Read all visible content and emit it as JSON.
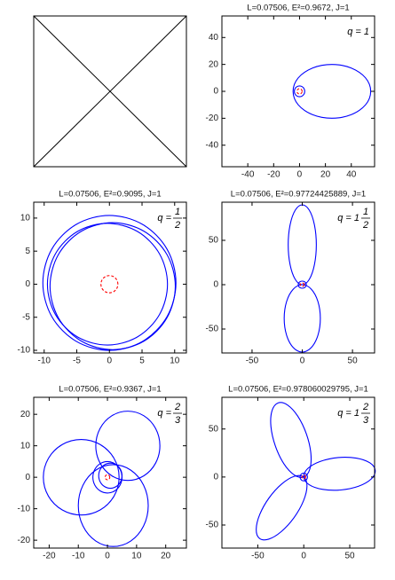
{
  "chart_data": [
    {
      "type": "line",
      "title": "L=0.07506, E²=0.9672, J=1",
      "annotation": {
        "text": "q = 1"
      },
      "xlim": [
        -60,
        58
      ],
      "ylim": [
        -56,
        56
      ],
      "xticks": [
        -40,
        -20,
        0,
        20,
        40
      ],
      "yticks": [
        -40,
        -20,
        0,
        20,
        40
      ],
      "series": [
        {
          "color": "#0000ff",
          "x": [
            55,
            54.0,
            51.0,
            46.2,
            40,
            32.8,
            25,
            17.2,
            10,
            3.8,
            -1,
            -4,
            -5,
            -4,
            -1,
            3.8,
            10,
            17.2,
            25,
            32.8,
            40,
            46.2,
            51.0,
            54.0,
            55
          ],
          "values": [
            0,
            5.2,
            10,
            14.1,
            17.3,
            19.3,
            20,
            19.3,
            17.3,
            14.1,
            10,
            5.2,
            0,
            -5.2,
            -10,
            -14.1,
            -17.3,
            -19.3,
            -20,
            -19.3,
            -17.3,
            -14.1,
            -10,
            -5.2,
            0
          ]
        },
        {
          "color": "#0000ff",
          "x": [
            4,
            3.5,
            2,
            0,
            -2,
            -3.5,
            -4,
            -3.5,
            -2,
            0,
            2,
            3.5,
            4
          ],
          "values": [
            0,
            2,
            3.5,
            4,
            3.5,
            2,
            0,
            -2,
            -3.5,
            -4,
            -3.5,
            -2,
            0
          ]
        },
        {
          "color": "#ff0000",
          "dashed": true,
          "x": [
            2,
            1.7,
            1,
            0,
            -1,
            -1.7,
            -2,
            -1.7,
            -1,
            0,
            1,
            1.7,
            2
          ],
          "values": [
            0,
            1,
            1.7,
            2,
            1.7,
            1,
            0,
            -1,
            -1.7,
            -2,
            -1.7,
            -1,
            0
          ]
        }
      ]
    },
    {
      "type": "line",
      "title": "L=0.07506, E²=0.9095, J=1",
      "annotation": {
        "text": "q =",
        "numerator": "1",
        "denominator": "2"
      },
      "xlim": [
        -11.6,
        11.8
      ],
      "ylim": [
        -10.4,
        12.4
      ],
      "xticks": [
        -10,
        -5,
        0,
        5,
        10
      ],
      "yticks": [
        -10,
        -5,
        0,
        5,
        10
      ],
      "series": [
        {
          "color": "#0000ff",
          "x": [
            10.2,
            8.83,
            5.1,
            0,
            -5.1,
            -8.83,
            -10.2,
            -8.83,
            -5.1,
            0,
            5.1,
            8.83,
            10.2
          ],
          "values": [
            0.2,
            5.3,
            9.03,
            10.4,
            9.03,
            5.3,
            0.2,
            -4.9,
            -8.63,
            -10,
            -8.63,
            -4.9,
            0.2
          ]
        },
        {
          "color": "#0000ff",
          "x": [
            10.1,
            8.81,
            5.3,
            0.5,
            -4.3,
            -7.81,
            -9.1,
            -7.81,
            -4.3,
            0.5,
            5.3,
            8.81,
            10.1
          ],
          "values": [
            -0.3,
            4.5,
            8.01,
            9.3,
            8.01,
            4.5,
            -0.3,
            -5.1,
            -8.61,
            -9.9,
            -8.61,
            -5.1,
            -0.3
          ]
        },
        {
          "color": "#0000ff",
          "x": [
            8.9,
            7.67,
            4.3,
            -0.3,
            -4.9,
            -8.27,
            -9.5,
            -8.27,
            -4.9,
            -0.3,
            4.3,
            7.67,
            8.9
          ],
          "values": [
            0,
            4.6,
            7.97,
            9.2,
            7.97,
            4.6,
            0,
            -4.6,
            -7.97,
            -9.2,
            -7.97,
            -4.6,
            0
          ]
        },
        {
          "color": "#ff0000",
          "dashed": true,
          "x": [
            1.3,
            1.13,
            0.65,
            0,
            -0.65,
            -1.13,
            -1.3,
            -1.13,
            -0.65,
            0,
            0.65,
            1.13,
            1.3
          ],
          "values": [
            0,
            0.65,
            1.13,
            1.3,
            1.13,
            0.65,
            0,
            -0.65,
            -1.13,
            -1.3,
            -1.13,
            -0.65,
            0
          ]
        }
      ]
    },
    {
      "type": "line",
      "title": "L=0.07506, E²=0.97724425889, J=1",
      "annotation": {
        "text": "q = 1",
        "numerator": "1",
        "denominator": "2"
      },
      "xlim": [
        -80,
        72
      ],
      "ylim": [
        -77,
        93
      ],
      "xticks": [
        -50,
        0,
        50
      ],
      "yticks": [
        -50,
        0,
        50
      ],
      "series": [
        {
          "color": "#0000ff",
          "x": [
            0,
            7,
            12.1,
            14,
            12.1,
            7,
            0,
            -7,
            -12.1,
            -14,
            -12.1,
            -7,
            0
          ],
          "values": [
            0,
            6,
            22.5,
            45,
            67.5,
            84,
            90,
            84,
            67.5,
            45,
            22.5,
            6,
            0
          ]
        },
        {
          "color": "#0000ff",
          "x": [
            0,
            -9,
            -15.6,
            -18,
            -15.6,
            -9,
            0,
            9,
            15.6,
            18,
            15.6,
            9,
            0
          ],
          "values": [
            0,
            -5.1,
            -19,
            -38,
            -57,
            -70.9,
            -76,
            -70.9,
            -57,
            -38,
            -19,
            -5.1,
            0
          ]
        },
        {
          "color": "#0000ff",
          "x": [
            4,
            3.5,
            2,
            0,
            -2,
            -3.5,
            -4,
            -3.5,
            -2,
            0,
            2,
            3.5,
            4
          ],
          "values": [
            0,
            2,
            3.5,
            4,
            3.5,
            2,
            0,
            -2,
            -3.5,
            -4,
            -3.5,
            -2,
            0
          ]
        },
        {
          "color": "#ff0000",
          "dashed": true,
          "x": [
            2,
            1.7,
            1,
            0,
            -1,
            -1.7,
            -2,
            -1.7,
            -1,
            0,
            1,
            1.7,
            2
          ],
          "values": [
            0,
            1,
            1.7,
            2,
            1.7,
            1,
            0,
            -1,
            -1.7,
            -2,
            -1.7,
            -1,
            0
          ]
        }
      ]
    },
    {
      "type": "line",
      "title": "L=0.07506, E²=0.9367, J=1",
      "annotation": {
        "text": "q =",
        "numerator": "2",
        "denominator": "3"
      },
      "xlim": [
        -25.3,
        27.1
      ],
      "ylim": [
        -22.5,
        25.4
      ],
      "xticks": [
        -20,
        -10,
        0,
        10,
        20
      ],
      "yticks": [
        -20,
        -10,
        0,
        10,
        20
      ],
      "series": [
        {
          "color": "#0000ff",
          "x": [
            4,
            2.26,
            -2.5,
            -9,
            -15.5,
            -20.26,
            -22,
            -20.26,
            -15.5,
            -9,
            -2.5,
            2.26,
            4
          ],
          "values": [
            0,
            6,
            10.39,
            12,
            10.39,
            6,
            0,
            -6,
            -10.39,
            -12,
            -10.39,
            -6,
            0
          ]
        },
        {
          "color": "#0000ff",
          "x": [
            18,
            16.53,
            12.5,
            7,
            1.5,
            -2.53,
            -4,
            -2.53,
            1.5,
            7,
            12.5,
            16.53,
            18
          ],
          "values": [
            10,
            15.5,
            19.53,
            21,
            19.53,
            15.5,
            10,
            4.5,
            0.47,
            -1,
            0.47,
            4.5,
            10
          ]
        },
        {
          "color": "#0000ff",
          "x": [
            14,
            12.39,
            8,
            2,
            -4,
            -8.39,
            -10,
            -8.39,
            -4,
            2,
            8,
            12.39,
            14
          ],
          "values": [
            -9,
            -2.5,
            2.26,
            4,
            2.26,
            -2.5,
            -9,
            -15.5,
            -20.26,
            -22,
            -20.26,
            -15.5,
            -9
          ]
        },
        {
          "color": "#0000ff",
          "x": [
            5,
            4.33,
            2.5,
            0,
            -2.5,
            -4.33,
            -5,
            -4.33,
            -2.5,
            0,
            2.5,
            4.33,
            5
          ],
          "values": [
            0,
            2.5,
            4.33,
            5,
            4.33,
            2.5,
            0,
            -2.5,
            -4.33,
            -5,
            -4.33,
            -2.5,
            0
          ]
        },
        {
          "color": "#0000ff",
          "x": [
            5,
            4.46,
            3,
            1,
            -1,
            -2.46,
            -3,
            -2.46,
            -1,
            1,
            3,
            4.46,
            5
          ],
          "values": [
            0.5,
            2.5,
            3.96,
            4.5,
            3.96,
            2.5,
            0.5,
            -1.5,
            -2.96,
            -3.5,
            -2.96,
            -1.5,
            0.5
          ]
        },
        {
          "color": "#ff0000",
          "dashed": true,
          "x": [
            0.8,
            0.69,
            0.4,
            0,
            -0.4,
            -0.69,
            -0.8,
            -0.69,
            -0.4,
            0,
            0.4,
            0.69,
            0.8
          ],
          "values": [
            0,
            0.4,
            0.69,
            0.8,
            0.69,
            0.4,
            0,
            -0.4,
            -0.69,
            -0.8,
            -0.69,
            -0.4,
            0
          ]
        }
      ]
    },
    {
      "type": "line",
      "title": "L=0.07506, E²=0.978060029795, J=1",
      "annotation": {
        "text": "q = 1",
        "numerator": "2",
        "denominator": "3"
      },
      "xlim": [
        -89,
        77
      ],
      "ylim": [
        -74,
        83
      ],
      "xticks": [
        -50,
        0,
        50
      ],
      "yticks": [
        -50,
        0,
        50
      ],
      "series": [
        {
          "color": "#0000ff",
          "x": [
            0,
            -10.3,
            -21.7,
            -30.9,
            -35.7,
            -34.6,
            -28.0,
            -17.7,
            -6.4,
            2.9,
            7.7,
            6.6,
            0
          ],
          "values": [
            0,
            2.1,
            13.9,
            32.4,
            52.5,
            68.8,
            77.1,
            75.0,
            63.2,
            44.7,
            24.6,
            8.3,
            0
          ]
        },
        {
          "color": "#0000ff",
          "x": [
            0,
            4.4,
            18.1,
            37.4,
            57.0,
            71.8,
            77.7,
            73.3,
            59.6,
            40.3,
            20.7,
            5.9,
            0
          ],
          "values": [
            0,
            8.9,
            16.3,
            20.3,
            19.7,
            14.8,
            6.8,
            -2.1,
            -9.6,
            -13.5,
            -12.9,
            -8.0,
            0
          ]
        },
        {
          "color": "#0000ff",
          "x": [
            0,
            3.5,
            -0.3,
            -10.5,
            -24.4,
            -38.1,
            -48.2,
            -51.7,
            -47.9,
            -37.7,
            -23.8,
            -10.0,
            0
          ],
          "values": [
            0,
            -9.4,
            -24.8,
            -42.2,
            -56.8,
            -64.7,
            -63.9,
            -54.5,
            -39.1,
            -21.7,
            -7.1,
            0.8,
            0
          ]
        },
        {
          "color": "#0000ff",
          "x": [
            4,
            3.5,
            2,
            0,
            -2,
            -3.5,
            -4,
            -3.5,
            -2,
            0,
            2,
            3.5,
            4
          ],
          "values": [
            0,
            2,
            3.5,
            4,
            3.5,
            2,
            0,
            -2,
            -3.5,
            -4,
            -3.5,
            -2,
            0
          ]
        },
        {
          "color": "#ff0000",
          "dashed": true,
          "x": [
            2,
            1.7,
            1,
            0,
            -1,
            -1.7,
            -2,
            -1.7,
            -1,
            0,
            1,
            1.7,
            2
          ],
          "values": [
            0,
            1,
            1.7,
            2,
            1.7,
            1,
            0,
            -1,
            -1.7,
            -2,
            -1.7,
            -1,
            0
          ]
        }
      ]
    }
  ]
}
